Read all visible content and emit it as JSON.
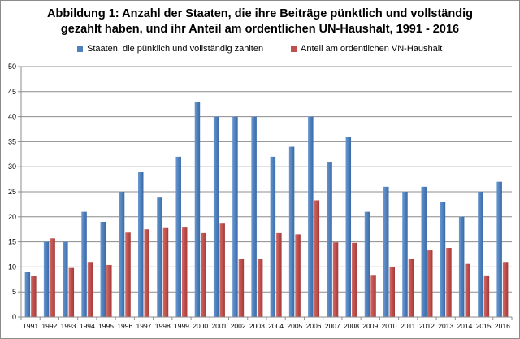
{
  "chart_data": {
    "type": "bar",
    "title_line1": "Abbildung 1: Anzahl der Staaten, die ihre Beiträge pünktlich und vollständig",
    "title_line2": "gezahlt haben, und ihr Anteil am ordentlichen UN-Haushalt, 1991 - 2016",
    "categories": [
      "1991",
      "1992",
      "1993",
      "1994",
      "1995",
      "1996",
      "1997",
      "1998",
      "1999",
      "2000",
      "2001",
      "2002",
      "2003",
      "2004",
      "2005",
      "2006",
      "2007",
      "2008",
      "2009",
      "2010",
      "2011",
      "2012",
      "2013",
      "2014",
      "2015",
      "2016"
    ],
    "series": [
      {
        "name": "Staaten, die pünklich und vollständig zahlten",
        "color": "#4f81bd",
        "values": [
          9,
          15,
          15,
          21,
          19,
          25,
          29,
          24,
          32,
          43,
          40,
          40,
          40,
          32,
          34,
          40,
          31,
          36,
          21,
          26,
          25,
          26,
          23,
          20,
          25,
          27
        ]
      },
      {
        "name": "Anteil am ordentlichen VN-Haushalt",
        "color": "#c0504d",
        "values": [
          8.2,
          15.7,
          9.8,
          11,
          10.4,
          17,
          17.5,
          17.9,
          18,
          16.9,
          18.8,
          11.6,
          11.6,
          16.9,
          16.5,
          23.3,
          14.9,
          14.8,
          8.4,
          9.9,
          11.6,
          13.3,
          13.8,
          10.6,
          8.3,
          11
        ]
      }
    ],
    "ylim": [
      0,
      50
    ],
    "yticks": [
      "0",
      "5",
      "10",
      "15",
      "20",
      "25",
      "30",
      "35",
      "40",
      "45",
      "50"
    ],
    "grid": true,
    "legend_position": "top"
  }
}
